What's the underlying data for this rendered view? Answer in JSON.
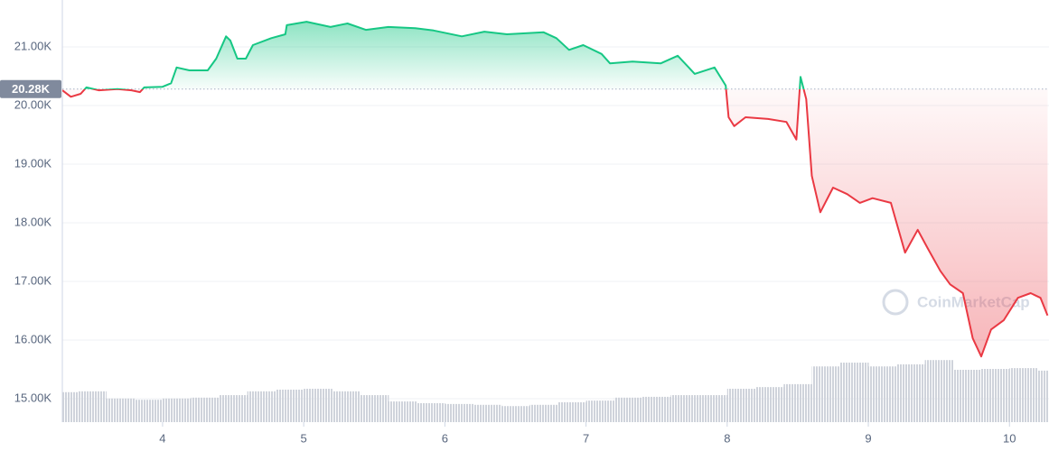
{
  "chart_data": {
    "type": "line",
    "x": [
      3.29,
      3.35,
      3.42,
      3.46,
      3.55,
      3.68,
      3.78,
      3.84,
      3.87,
      4.0,
      4.06,
      4.1,
      4.19,
      4.32,
      4.38,
      4.45,
      4.48,
      4.53,
      4.59,
      4.64,
      4.77,
      4.87,
      4.88,
      5.02,
      5.19,
      5.31,
      5.44,
      5.6,
      5.79,
      5.92,
      6.12,
      6.28,
      6.44,
      6.7,
      6.79,
      6.88,
      6.98,
      7.11,
      7.17,
      7.33,
      7.53,
      7.65,
      7.77,
      7.91,
      7.99,
      8.01,
      8.05,
      8.13,
      8.29,
      8.42,
      8.49,
      8.52,
      8.56,
      8.6,
      8.66,
      8.75,
      8.85,
      8.94,
      9.03,
      9.16,
      9.26,
      9.35,
      9.42,
      9.51,
      9.58,
      9.67,
      9.74,
      9.8,
      9.87,
      9.96,
      10.06,
      10.15,
      10.22,
      10.27
    ],
    "values": [
      20260,
      20150,
      20200,
      20310,
      20260,
      20280,
      20260,
      20230,
      20310,
      20320,
      20380,
      20650,
      20600,
      20600,
      20800,
      21180,
      21110,
      20800,
      20800,
      21030,
      21150,
      21215,
      21370,
      21430,
      21340,
      21400,
      21290,
      21340,
      21320,
      21280,
      21180,
      21260,
      21215,
      21250,
      21150,
      20950,
      21030,
      20880,
      20720,
      20750,
      20720,
      20850,
      20540,
      20650,
      20340,
      19800,
      19650,
      19800,
      19770,
      19720,
      19420,
      20490,
      20110,
      18800,
      18180,
      18600,
      18490,
      18340,
      18420,
      18340,
      17490,
      17880,
      17570,
      17180,
      16950,
      16800,
      16030,
      15720,
      16180,
      16340,
      16720,
      16800,
      16720,
      16420
    ],
    "up_color": "#16c784",
    "down_color": "#ea3943",
    "baseline": {
      "value": 20280,
      "label": "20.28K"
    },
    "volume": {
      "axis": "y2",
      "color": "#c9ccd4",
      "x": [
        3.3,
        3.5,
        3.7,
        3.9,
        4.1,
        4.3,
        4.5,
        4.7,
        4.9,
        5.1,
        5.3,
        5.5,
        5.7,
        5.9,
        6.1,
        6.3,
        6.5,
        6.7,
        6.9,
        7.1,
        7.3,
        7.5,
        7.7,
        7.9,
        8.1,
        8.3,
        8.5,
        8.7,
        8.9,
        9.1,
        9.3,
        9.5,
        9.7,
        9.9,
        10.1,
        10.3
      ],
      "values": [
        7.1,
        7.3,
        5.6,
        5.3,
        5.6,
        5.8,
        6.4,
        7.3,
        7.7,
        7.9,
        7.3,
        6.4,
        4.9,
        4.5,
        4.3,
        4.1,
        3.8,
        4.1,
        4.7,
        5.1,
        5.8,
        6.0,
        6.4,
        6.4,
        7.9,
        8.3,
        9.0,
        13.2,
        14.1,
        13.2,
        13.7,
        14.7,
        12.4,
        12.6,
        12.8,
        12.2
      ]
    },
    "xlim": [
      3.29,
      10.28
    ],
    "xticks": [
      4,
      5,
      6,
      7,
      8,
      9,
      10
    ],
    "ylim": [
      14600,
      21800
    ],
    "yticks": [
      {
        "value": 15000,
        "label": "15.00K"
      },
      {
        "value": 16000,
        "label": "16.00K"
      },
      {
        "value": 17000,
        "label": "17.00K"
      },
      {
        "value": 18000,
        "label": "18.00K"
      },
      {
        "value": 19000,
        "label": "19.00K"
      },
      {
        "value": 20000,
        "label": "20.00K"
      },
      {
        "value": 21000,
        "label": "21.00K"
      }
    ],
    "y2lim": [
      0,
      100
    ],
    "grid": true,
    "watermark": "CoinMarketCap"
  }
}
